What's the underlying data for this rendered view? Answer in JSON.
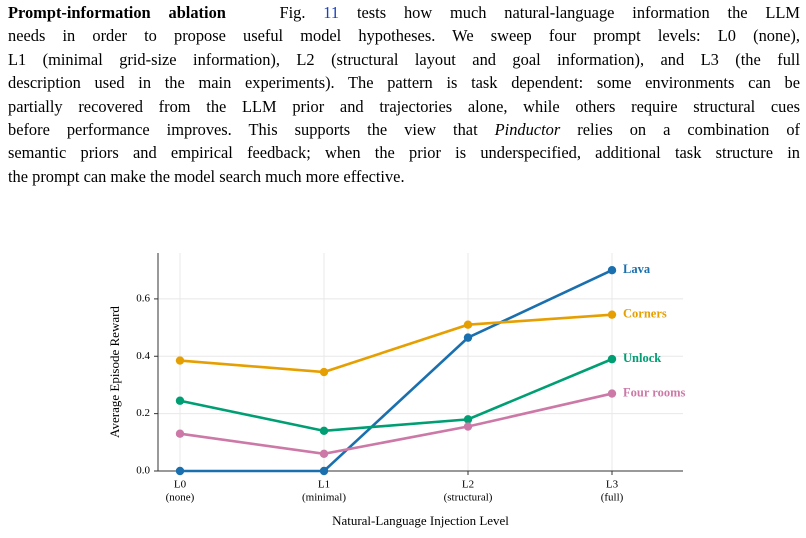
{
  "paragraph": {
    "heading": "Prompt-information ablation",
    "ref_label": "Fig.",
    "ref": "11",
    "line1": "tests how much natural-language information the LLM",
    "lines": [
      "needs in order to propose useful model hypotheses. We sweep four prompt levels: L0 (none),",
      "L1 (minimal grid-size information), L2 (structural layout and goal information), and L3 (the full",
      "description used in the main experiments). The pattern is task dependent: some environments can be",
      "partially recovered from the LLM prior and trajectories alone, while others require structural cues"
    ],
    "pre_name": "before performance improves. This supports the view that",
    "name": "Pinductor",
    "post_name": "relies on a combination of",
    "lines_after": [
      "semantic priors and empirical feedback; when the prior is underspecified, additional task structure in",
      "the prompt can make the model search much more effective."
    ]
  },
  "chart_data": {
    "type": "line",
    "x_label": "Natural-Language Injection Level",
    "y_label": "Average Episode Reward",
    "categories": [
      "L0",
      "L1",
      "L2",
      "L3"
    ],
    "category_notes": [
      "(none)",
      "(minimal)",
      "(structural)",
      "(full)"
    ],
    "ylim": [
      0,
      0.76
    ],
    "yticks": [
      {
        "value": 0,
        "label": "0.0"
      },
      {
        "value": 0.2,
        "label": "0.2"
      },
      {
        "value": 0.4,
        "label": "0.4"
      },
      {
        "value": 0.6,
        "label": "0.6"
      }
    ],
    "grid": true,
    "series": [
      {
        "name": "Lava",
        "color": "#1a6fae",
        "values": [
          0,
          0,
          0.465,
          0.7
        ]
      },
      {
        "name": "Corners",
        "color": "#e69f00",
        "values": [
          0.385,
          0.345,
          0.51,
          0.545
        ]
      },
      {
        "name": "Unlock",
        "color": "#009e73",
        "values": [
          0.245,
          0.14,
          0.18,
          0.39
        ]
      },
      {
        "name": "Four rooms",
        "color": "#cc79a7",
        "values": [
          0.13,
          0.06,
          0.155,
          0.27
        ]
      }
    ]
  }
}
